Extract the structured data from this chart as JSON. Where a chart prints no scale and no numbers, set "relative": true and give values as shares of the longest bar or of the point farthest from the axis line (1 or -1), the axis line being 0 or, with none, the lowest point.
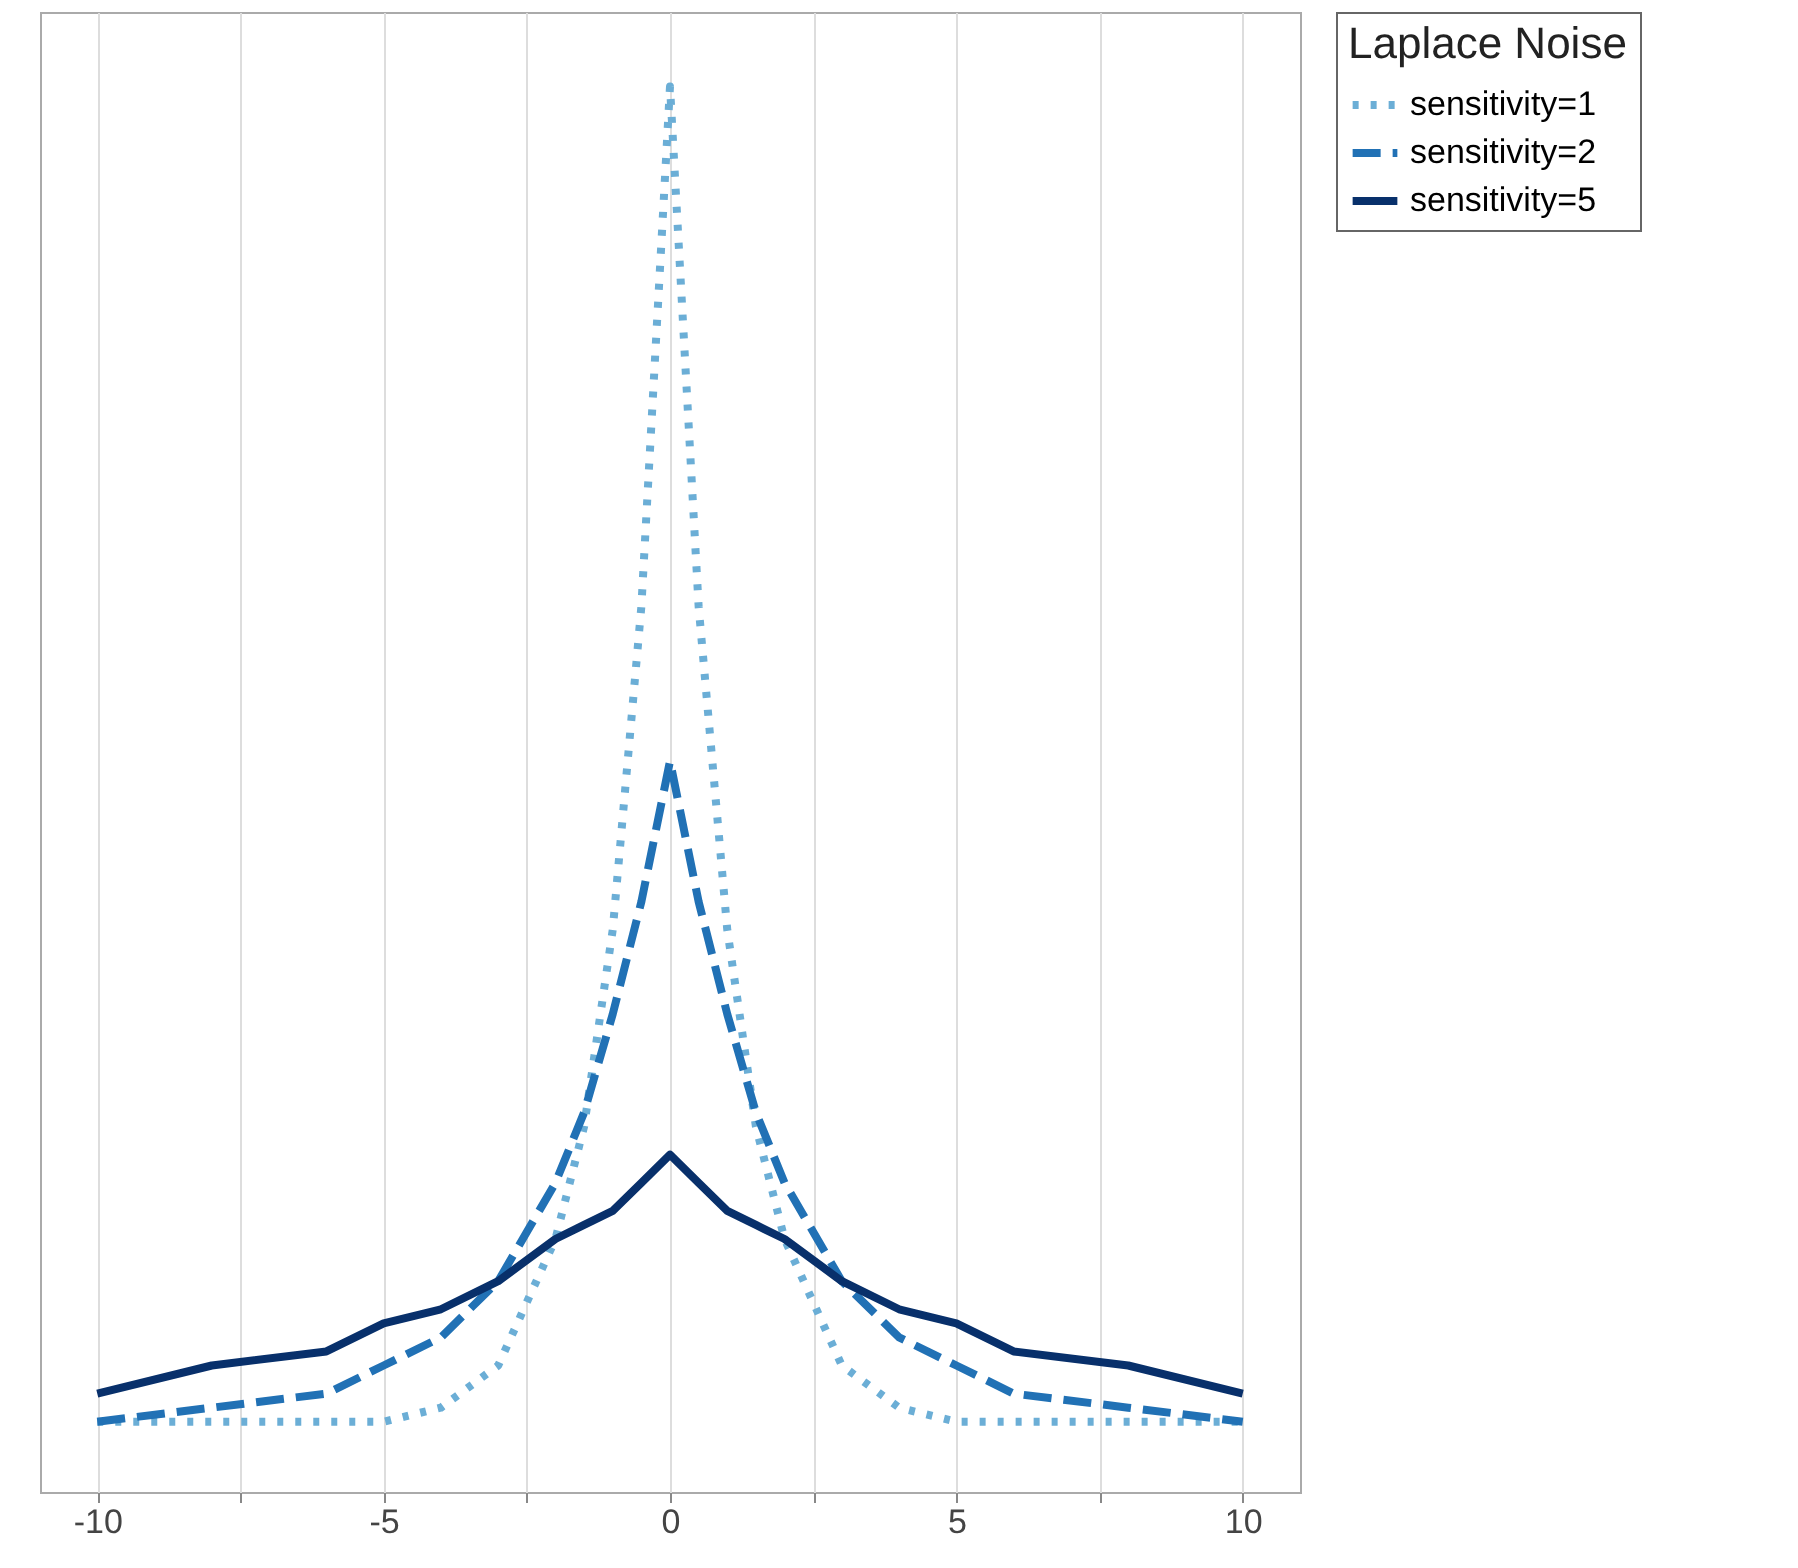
{
  "chart_data": {
    "type": "line",
    "relative": true,
    "legend_title": "Laplace Noise",
    "legend": "right",
    "grid": "x",
    "x": [
      -10,
      -8,
      -6,
      -5,
      -4,
      -3,
      -2,
      -1.5,
      -1,
      -0.5,
      0,
      0.5,
      1,
      1.5,
      2,
      3,
      4,
      5,
      6,
      8,
      10
    ],
    "xlim": [
      -11,
      11
    ],
    "xticks": [
      -10,
      {
        "value": -7.5,
        "label": null
      },
      -5,
      {
        "value": -2.5,
        "label": null
      },
      0,
      {
        "value": 2.5,
        "label": null
      },
      5,
      {
        "value": 7.5,
        "label": null
      },
      10
    ],
    "series": [
      {
        "name": "sensitivity=1",
        "color": "#6baed6",
        "line_style": "dotted",
        "values": [
          0.05,
          0.05,
          0.05,
          0.05,
          0.06,
          0.09,
          0.18,
          0.26,
          0.4,
          0.63,
          1.0,
          0.63,
          0.4,
          0.26,
          0.18,
          0.09,
          0.06,
          0.05,
          0.05,
          0.05,
          0.05
        ]
      },
      {
        "name": "sensitivity=2",
        "color": "#2171b5",
        "line_style": "dashed",
        "values": [
          0.05,
          0.06,
          0.07,
          0.09,
          0.11,
          0.15,
          0.22,
          0.27,
          0.34,
          0.42,
          0.52,
          0.42,
          0.34,
          0.27,
          0.22,
          0.15,
          0.11,
          0.09,
          0.07,
          0.06,
          0.05
        ]
      },
      {
        "name": "sensitivity=5",
        "color": "#08306b",
        "line_style": "solid",
        "values": [
          0.07,
          0.09,
          0.1,
          0.12,
          0.13,
          0.15,
          0.18,
          0.19,
          0.2,
          0.22,
          0.24,
          0.22,
          0.2,
          0.19,
          0.18,
          0.15,
          0.13,
          0.12,
          0.1,
          0.09,
          0.07
        ]
      }
    ]
  }
}
